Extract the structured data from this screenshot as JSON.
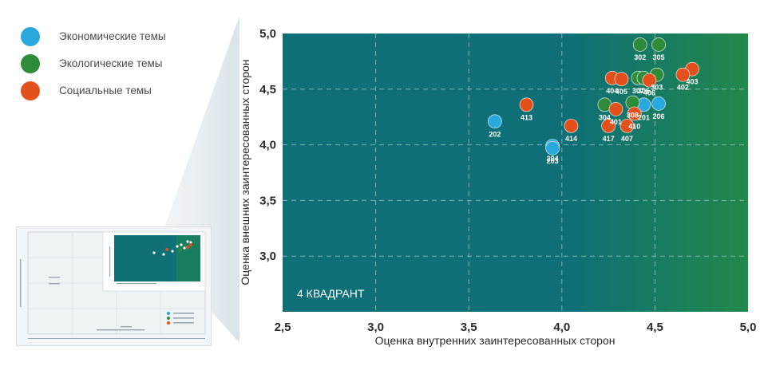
{
  "legend": {
    "items": [
      {
        "label": "Экономические темы",
        "color": "#29a8dd"
      },
      {
        "label": "Экологические темы",
        "color": "#2e8b3a"
      },
      {
        "label": "Социальные темы",
        "color": "#e2501c"
      }
    ]
  },
  "chart_data": {
    "type": "scatter",
    "xlabel": "Оценка внутренних заинтересованных сторон",
    "ylabel": "Оценка внешних заинтересованных сторон",
    "xlim": [
      2.5,
      5.0
    ],
    "ylim": [
      2.5,
      5.0
    ],
    "x_ticks": [
      "2,5",
      "3,0",
      "3,5",
      "4,0",
      "4,5",
      "5,0"
    ],
    "y_ticks": [
      "2,5",
      "3,0",
      "3,5",
      "4,0",
      "4,5",
      "5,0"
    ],
    "grid": true,
    "quadrant_label": "4 КВАДРАНТ",
    "colors": {
      "economic": "#29a8dd",
      "ecological": "#2e8b3a",
      "social": "#e2501c"
    },
    "series": [
      {
        "name": "Экономические темы",
        "color": "#29a8dd",
        "points": [
          {
            "id": "202",
            "x": 3.64,
            "y": 4.21
          },
          {
            "id": "204",
            "x": 3.95,
            "y": 3.99
          },
          {
            "id": "203",
            "x": 3.95,
            "y": 3.97
          },
          {
            "id": "201",
            "x": 4.44,
            "y": 4.36
          },
          {
            "id": "206",
            "x": 4.52,
            "y": 4.37
          }
        ]
      },
      {
        "name": "Экологические темы",
        "color": "#2e8b3a",
        "points": [
          {
            "id": "302",
            "x": 4.42,
            "y": 4.9
          },
          {
            "id": "305",
            "x": 4.52,
            "y": 4.9
          },
          {
            "id": "303",
            "x": 4.51,
            "y": 4.63
          },
          {
            "id": "307",
            "x": 4.41,
            "y": 4.6
          },
          {
            "id": "306",
            "x": 4.44,
            "y": 4.6
          },
          {
            "id": "304",
            "x": 4.23,
            "y": 4.36
          },
          {
            "id": "308",
            "x": 4.38,
            "y": 4.38
          }
        ]
      },
      {
        "name": "Социальные темы",
        "color": "#e2501c",
        "points": [
          {
            "id": "404",
            "x": 4.27,
            "y": 4.6
          },
          {
            "id": "405",
            "x": 4.32,
            "y": 4.59
          },
          {
            "id": "403",
            "x": 4.7,
            "y": 4.68
          },
          {
            "id": "402",
            "x": 4.65,
            "y": 4.63
          },
          {
            "id": "406",
            "x": 4.47,
            "y": 4.58
          },
          {
            "id": "401",
            "x": 4.29,
            "y": 4.32
          },
          {
            "id": "413",
            "x": 3.81,
            "y": 4.36
          },
          {
            "id": "414",
            "x": 4.05,
            "y": 4.17
          },
          {
            "id": "417",
            "x": 4.25,
            "y": 4.17
          },
          {
            "id": "407",
            "x": 4.35,
            "y": 4.17
          },
          {
            "id": "410",
            "x": 4.39,
            "y": 4.28
          }
        ]
      }
    ]
  }
}
